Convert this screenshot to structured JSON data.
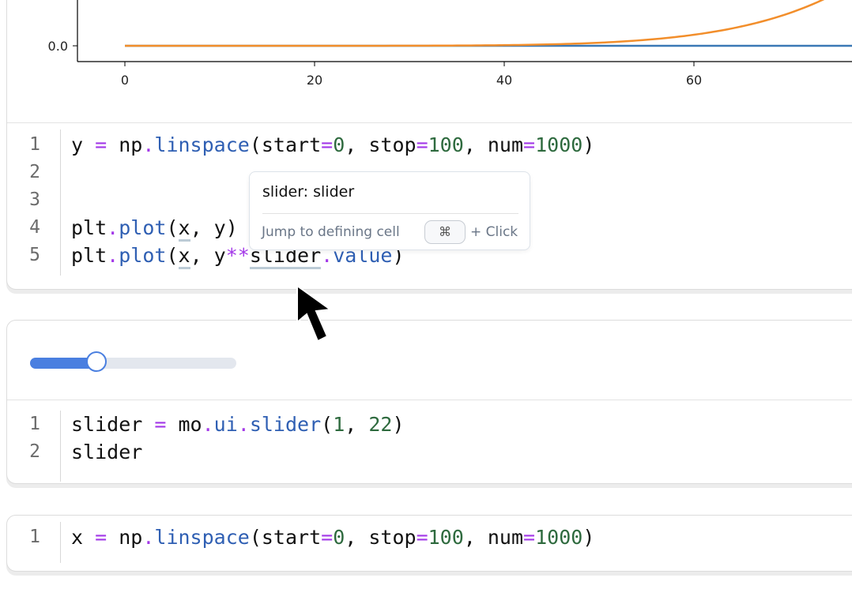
{
  "plot_cell": {
    "chart_data": {
      "type": "line",
      "x_ticks": [
        "0",
        "20",
        "40",
        "60"
      ],
      "y_ticks": [
        "0.0"
      ],
      "xlim": [
        -5,
        77
      ],
      "series": [
        {
          "expression": "y",
          "color": "#3a78b5"
        },
        {
          "expression": "y**slider.value",
          "color": "#f28e2b",
          "exponent": 7
        }
      ]
    },
    "code": [
      {
        "n": "1",
        "tokens": [
          [
            "y ",
            ""
          ],
          [
            "=",
            "kw"
          ],
          [
            " np",
            ""
          ],
          [
            ".",
            "kw"
          ],
          [
            "linspace",
            "fn"
          ],
          [
            "(start",
            ""
          ],
          [
            "=",
            "kw"
          ],
          [
            "0",
            "num"
          ],
          [
            ", stop",
            ""
          ],
          [
            "=",
            "kw"
          ],
          [
            "100",
            "num"
          ],
          [
            ", num",
            ""
          ],
          [
            "=",
            "kw"
          ],
          [
            "1000",
            "num"
          ],
          [
            ")",
            ""
          ]
        ]
      },
      {
        "n": "2",
        "tokens": []
      },
      {
        "n": "3",
        "tokens": []
      },
      {
        "n": "4",
        "tokens": [
          [
            "plt",
            ""
          ],
          [
            ".",
            "kw"
          ],
          [
            "plot",
            "fn"
          ],
          [
            "(",
            ""
          ],
          [
            "x",
            "ul"
          ],
          [
            ", y)",
            ""
          ]
        ]
      },
      {
        "n": "5",
        "tokens": [
          [
            "plt",
            ""
          ],
          [
            ".",
            "kw"
          ],
          [
            "plot",
            "fn"
          ],
          [
            "(",
            ""
          ],
          [
            "x",
            "ul"
          ],
          [
            ", y",
            ""
          ],
          [
            "**",
            "kw"
          ],
          [
            "slider",
            "ul"
          ],
          [
            ".",
            "kw"
          ],
          [
            "value",
            "fn"
          ],
          [
            ")",
            ""
          ]
        ]
      }
    ]
  },
  "tooltip": {
    "title": "slider: slider",
    "hint": "Jump to defining cell",
    "key": "⌘",
    "suffix": "+ Click"
  },
  "slider_cell": {
    "slider": {
      "min": 1,
      "max": 22,
      "value": 7,
      "fill_color": "#4a7fe0"
    },
    "code": [
      {
        "n": "1",
        "tokens": [
          [
            "slider ",
            ""
          ],
          [
            "=",
            "kw"
          ],
          [
            " mo",
            ""
          ],
          [
            ".",
            "kw"
          ],
          [
            "ui",
            "fn"
          ],
          [
            ".",
            "kw"
          ],
          [
            "slider",
            "fn"
          ],
          [
            "(",
            ""
          ],
          [
            "1",
            "num"
          ],
          [
            ", ",
            ""
          ],
          [
            "22",
            "num"
          ],
          [
            ")",
            ""
          ]
        ]
      },
      {
        "n": "2",
        "tokens": [
          [
            "slider",
            ""
          ]
        ]
      }
    ]
  },
  "x_cell": {
    "code": [
      {
        "n": "1",
        "tokens": [
          [
            "x ",
            ""
          ],
          [
            "=",
            "kw"
          ],
          [
            " np",
            ""
          ],
          [
            ".",
            "kw"
          ],
          [
            "linspace",
            "fn"
          ],
          [
            "(start",
            ""
          ],
          [
            "=",
            "kw"
          ],
          [
            "0",
            "num"
          ],
          [
            ", stop",
            ""
          ],
          [
            "=",
            "kw"
          ],
          [
            "100",
            "num"
          ],
          [
            ", num",
            ""
          ],
          [
            "=",
            "kw"
          ],
          [
            "1000",
            "num"
          ],
          [
            ")",
            ""
          ]
        ]
      }
    ]
  }
}
